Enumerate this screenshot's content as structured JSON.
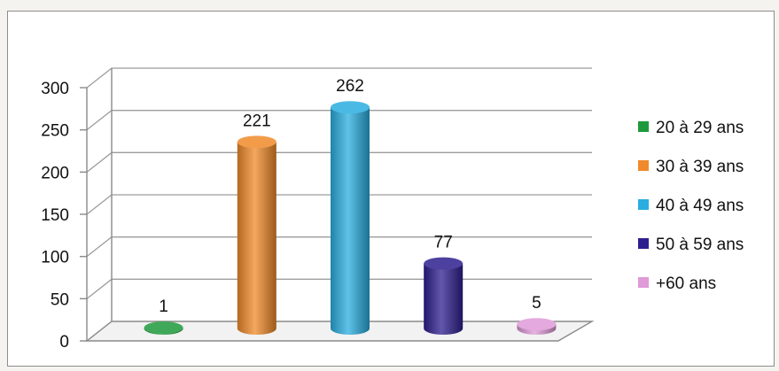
{
  "chart_data": {
    "type": "bar",
    "bar_shape": "cylinder",
    "categories": [
      "20 à 29 ans",
      "30 à 39 ans",
      "40 à 49 ans",
      "50 à 59 ans",
      "+60 ans"
    ],
    "values": [
      1,
      221,
      262,
      77,
      5
    ],
    "colors": [
      "#1e9a3c",
      "#f08a2a",
      "#2aaee0",
      "#2d1f8f",
      "#df9ad8"
    ],
    "ylim": [
      0,
      300
    ],
    "yticks": [
      0,
      50,
      100,
      150,
      200,
      250,
      300
    ],
    "grid": true,
    "legend_position": "right",
    "title": "",
    "xlabel": "",
    "ylabel": ""
  }
}
